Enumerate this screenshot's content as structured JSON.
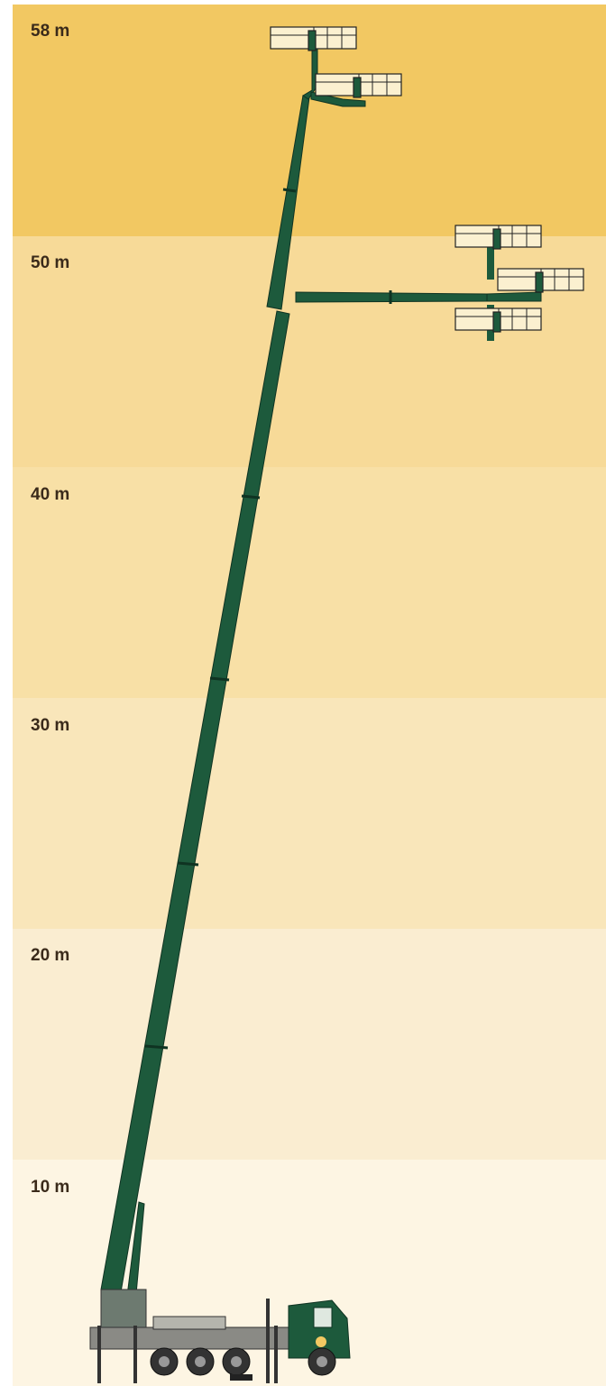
{
  "bands": [
    {
      "label": "58 m"
    },
    {
      "label": "50 m"
    },
    {
      "label": "40 m"
    },
    {
      "label": "30 m"
    },
    {
      "label": "20 m"
    },
    {
      "label": "10 m"
    }
  ]
}
